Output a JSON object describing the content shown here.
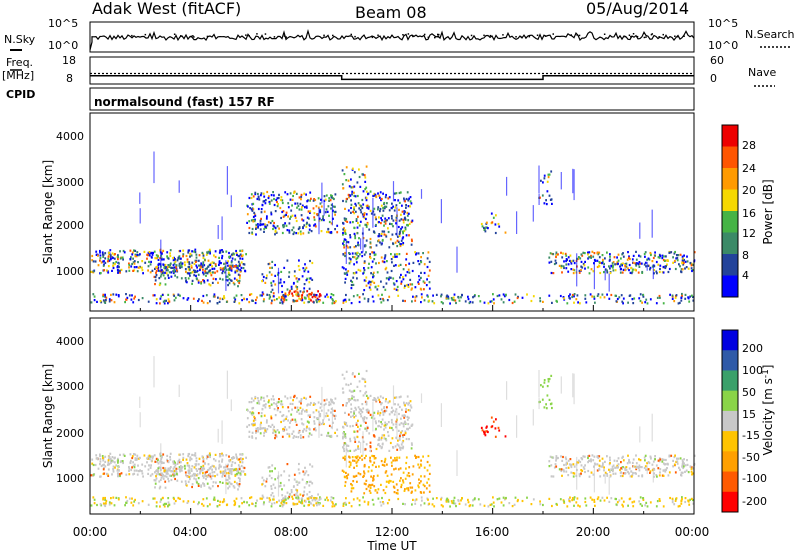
{
  "header": {
    "title": "Adak West (fitACF)",
    "beam": "Beam 08",
    "date": "05/Aug/2014"
  },
  "left_labels": {
    "nsky": "N.Sky",
    "freq": "Freq.",
    "freq_unit": "[MHz]",
    "cpid": "CPID",
    "nsky_ticks": [
      "10^5",
      "10^0"
    ],
    "freq_ticks": [
      "18",
      "8"
    ]
  },
  "right_labels": {
    "nsearch": "N.Search",
    "nave": "Nave",
    "nsearch_ticks": [
      "10^5",
      "10^0"
    ],
    "nave_ticks": [
      "60",
      "0"
    ]
  },
  "cpid_text": "normalsound (fast) 157 RF",
  "colors": {
    "power_scale": [
      "#0000ff",
      "#23439a",
      "#3b8a67",
      "#45b345",
      "#f5d800",
      "#ff9a00",
      "#ff5500",
      "#ee0000"
    ],
    "velocity_scale": [
      "#ff0000",
      "#ff5a00",
      "#ffa000",
      "#ffc400",
      "#c8c8c8",
      "#8ad448",
      "#3aa06a",
      "#2f5aa8",
      "#0000e0"
    ]
  },
  "chart_data": [
    {
      "type": "line",
      "panel": "N.Sky / N.Search",
      "x_range": [
        "00:00",
        "00:00"
      ],
      "y_scale": "log",
      "yticks": [
        "10^0",
        "10^5"
      ]
    },
    {
      "type": "line",
      "panel": "Freq. / Nave",
      "series": [
        {
          "name": "Freq.",
          "x_hours": [
            0,
            10,
            10,
            18,
            18,
            24
          ],
          "values": [
            12.5,
            12.5,
            11.2,
            11.2,
            12.5,
            12.5
          ]
        },
        {
          "name": "Nave",
          "x_hours": [
            0,
            24
          ],
          "values": [
            10,
            10
          ]
        }
      ],
      "yticks_left": [
        "8",
        "18"
      ],
      "yticks_right": [
        "0",
        "60"
      ]
    },
    {
      "type": "heatmap",
      "title": "Power [dB]",
      "ylabel": "Slant Range [km]",
      "yticks": [
        "1000",
        "2000",
        "3000",
        "4000"
      ],
      "xticks": [
        "00:00",
        "04:00",
        "08:00",
        "12:00",
        "16:00",
        "20:00",
        "00:00"
      ],
      "colorbar_label": "Power [dB]",
      "colorbar_ticks": [
        "4",
        "8",
        "12",
        "16",
        "20",
        "24",
        "28"
      ]
    },
    {
      "type": "heatmap",
      "title": "Velocity [m s^-1]",
      "ylabel": "Slant Range [km]",
      "xlabel": "Time UT",
      "yticks": [
        "1000",
        "2000",
        "3000",
        "4000"
      ],
      "xticks": [
        "00:00",
        "04:00",
        "08:00",
        "12:00",
        "16:00",
        "20:00",
        "00:00"
      ],
      "colorbar_label": "Velocity [m s^-1]",
      "colorbar_ticks": [
        "200",
        "100",
        "50",
        "15",
        "-15",
        "-50",
        "-100",
        "-200"
      ]
    }
  ]
}
